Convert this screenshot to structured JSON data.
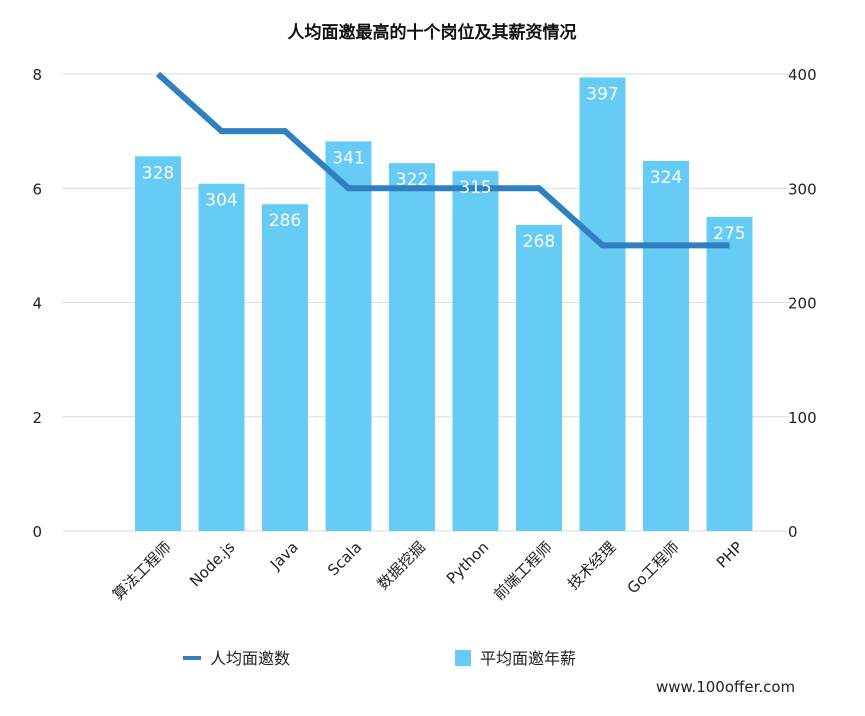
{
  "chart_data": {
    "type": "bar",
    "title": "人均面邀最高的十个岗位及其薪资情况",
    "categories": [
      "算法工程师",
      "Node.js",
      "Java",
      "Scala",
      "数据挖掘",
      "Python",
      "前端工程师",
      "技术经理",
      "Go工程师",
      "PHP"
    ],
    "series": [
      {
        "name": "平均面邀年薪",
        "type": "bar",
        "axis": "right",
        "color": "#66CCF5",
        "values": [
          328,
          304,
          286,
          341,
          322,
          315,
          268,
          397,
          324,
          275
        ]
      },
      {
        "name": "人均面邀数",
        "type": "line",
        "axis": "left",
        "color": "#2F80C0",
        "values": [
          8.0,
          7.0,
          7.0,
          6.0,
          6.0,
          6.0,
          6.0,
          5.0,
          5.0,
          5.0
        ]
      }
    ],
    "y_left": {
      "ticks": [
        "0",
        "2",
        "4",
        "6",
        "8"
      ],
      "ylim": [
        0,
        8
      ]
    },
    "y_right": {
      "ticks": [
        "0",
        "100",
        "200",
        "300",
        "400"
      ],
      "ylim": [
        0,
        400
      ]
    },
    "grid": true,
    "legend": "bottom",
    "data_labels": [
      "328",
      "304",
      "286",
      "341",
      "322",
      "315",
      "268",
      "397",
      "324",
      "275"
    ]
  },
  "footer": {
    "credit": "www.100offer.com"
  }
}
